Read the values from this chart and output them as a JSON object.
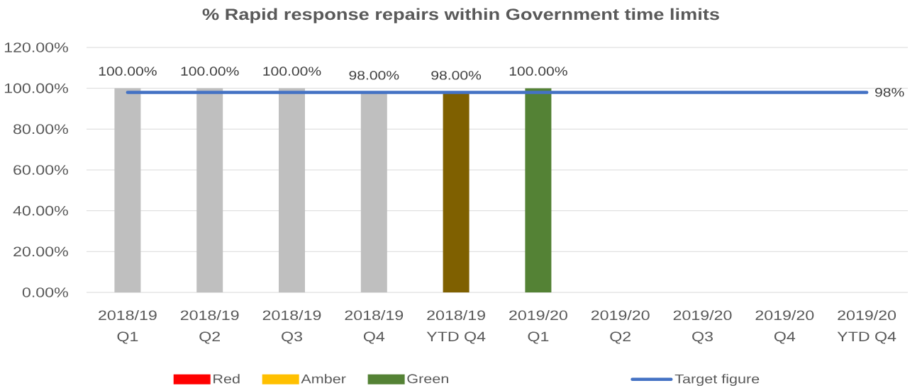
{
  "chart_data": {
    "type": "bar",
    "title": "% Rapid response repairs within Government time limits",
    "categories": [
      "2018/19 Q1",
      "2018/19 Q2",
      "2018/19 Q3",
      "2018/19 Q4",
      "2018/19 YTD Q4",
      "2019/20 Q1",
      "2019/20 Q2",
      "2019/20 Q3",
      "2019/20 Q4",
      "2019/20 YTD Q4"
    ],
    "series": [
      {
        "colors": [
          "#bfbfbf",
          "#bfbfbf",
          "#bfbfbf",
          "#bfbfbf",
          "#7f6000",
          "#548235",
          null,
          null,
          null,
          null
        ],
        "values": [
          100,
          100,
          100,
          98,
          98,
          100,
          null,
          null,
          null,
          null
        ],
        "value_labels": [
          "100.00%",
          "100.00%",
          "100.00%",
          "98.00%",
          "98.00%",
          "100.00%",
          null,
          null,
          null,
          null
        ]
      },
      {
        "name": "Red",
        "color": "#ff0000",
        "values": [
          null,
          null,
          null,
          null,
          null,
          null,
          null,
          null,
          null,
          null
        ]
      },
      {
        "name": "Amber",
        "color": "#ffc000",
        "values": [
          null,
          null,
          null,
          null,
          null,
          null,
          null,
          null,
          null,
          null
        ]
      },
      {
        "name": "Green",
        "color": "#548235",
        "values": [
          null,
          null,
          null,
          null,
          null,
          null,
          null,
          null,
          null,
          null
        ]
      },
      {
        "name": "Target figure",
        "type": "line",
        "color": "#4472c4",
        "values": [
          98,
          98,
          98,
          98,
          98,
          98,
          98,
          98,
          98,
          98
        ],
        "value_labels": [
          null,
          null,
          null,
          null,
          null,
          null,
          null,
          null,
          null,
          "98%"
        ]
      }
    ],
    "ylim": [
      0,
      120
    ],
    "yticks": [
      {
        "value": 0,
        "label": "0.00%"
      },
      {
        "value": 20,
        "label": "20.00%"
      },
      {
        "value": 40,
        "label": "40.00%"
      },
      {
        "value": 60,
        "label": "60.00%"
      },
      {
        "value": 80,
        "label": "80.00%"
      },
      {
        "value": 100,
        "label": "100.00%"
      },
      {
        "value": 120,
        "label": "120.00%"
      }
    ],
    "grid": "y",
    "legend": "bottom"
  }
}
